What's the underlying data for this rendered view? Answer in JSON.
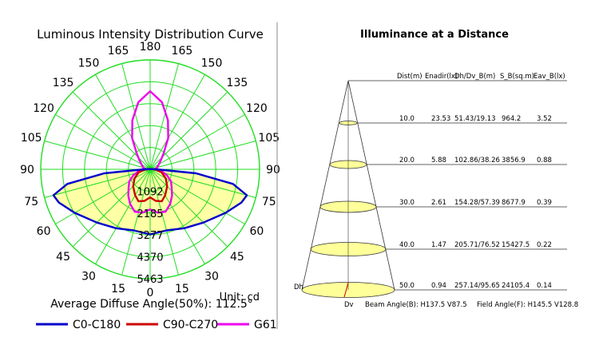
{
  "chart_data": [
    {
      "type": "polar-line",
      "title": "Luminous Intensity Distribution Curve",
      "angle_labels": [
        "180",
        "165",
        "150",
        "135",
        "120",
        "105",
        "90",
        "75",
        "60",
        "45",
        "30",
        "15",
        "0",
        "15",
        "30",
        "45",
        "60",
        "75",
        "90",
        "105",
        "120",
        "135",
        "150",
        "165"
      ],
      "radial_labels": [
        "1092",
        "2185",
        "3277",
        "4370",
        "5463"
      ],
      "radial_max": 5463,
      "unit": "Unit: cd",
      "average_diffuse_angle": "Average Diffuse Angle(50%): 112.5°",
      "grid": true,
      "legend_position": "bottom",
      "series": [
        {
          "name": "C0-C180",
          "color": "#0000cc",
          "angles": [
            0,
            15,
            30,
            45,
            60,
            70,
            75,
            80,
            85,
            90,
            95,
            100,
            110,
            120,
            150,
            180
          ],
          "values": [
            3250,
            3160,
            3400,
            3760,
            4350,
            4850,
            5000,
            4200,
            2300,
            300,
            120,
            80,
            40,
            20,
            10,
            10
          ]
        },
        {
          "name": "C90-C270",
          "color": "#cc0000",
          "angles": [
            0,
            10,
            20,
            30,
            45,
            60,
            75,
            85,
            90,
            100,
            120,
            150,
            180
          ],
          "values": [
            1400,
            1600,
            1700,
            1500,
            1200,
            900,
            600,
            300,
            120,
            60,
            30,
            10,
            10
          ]
        },
        {
          "name": "G61",
          "color": "#ee00ee",
          "angles": [
            0,
            10,
            20,
            30,
            40,
            50,
            60,
            70,
            80,
            90,
            100,
            110,
            120,
            130,
            140,
            150,
            160,
            170,
            180
          ],
          "values": [
            2000,
            2200,
            2250,
            2000,
            1700,
            1400,
            1200,
            900,
            600,
            400,
            300,
            400,
            500,
            700,
            1050,
            1800,
            2600,
            3400,
            3900
          ]
        }
      ]
    },
    {
      "type": "table",
      "title": "Illuminance at a Distance",
      "columns": [
        "Dist(m)",
        "Enadir(lx)",
        "Dh/Dv_B(m)",
        "S_B(sq.m)",
        "Eav_B(lx)"
      ],
      "rows": [
        [
          "10.0",
          "23.53",
          "51.43/19.13",
          "964.2",
          "3.52"
        ],
        [
          "20.0",
          "5.88",
          "102.86/38.26",
          "3856.9",
          "0.88"
        ],
        [
          "30.0",
          "2.61",
          "154.28/57.39",
          "8677.9",
          "0.39"
        ],
        [
          "40.0",
          "1.47",
          "205.71/76.52",
          "15427.5",
          "0.22"
        ],
        [
          "50.0",
          "0.94",
          "257.14/95.65",
          "24105.4",
          "0.14"
        ]
      ],
      "labels": {
        "dh": "Dh",
        "dv": "Dv",
        "beam": "Beam Angle(B): H137.5 V87.5",
        "field": "Field Angle(F): H145.5 V128.8"
      },
      "ellipse_fill": "#ffff99"
    }
  ]
}
